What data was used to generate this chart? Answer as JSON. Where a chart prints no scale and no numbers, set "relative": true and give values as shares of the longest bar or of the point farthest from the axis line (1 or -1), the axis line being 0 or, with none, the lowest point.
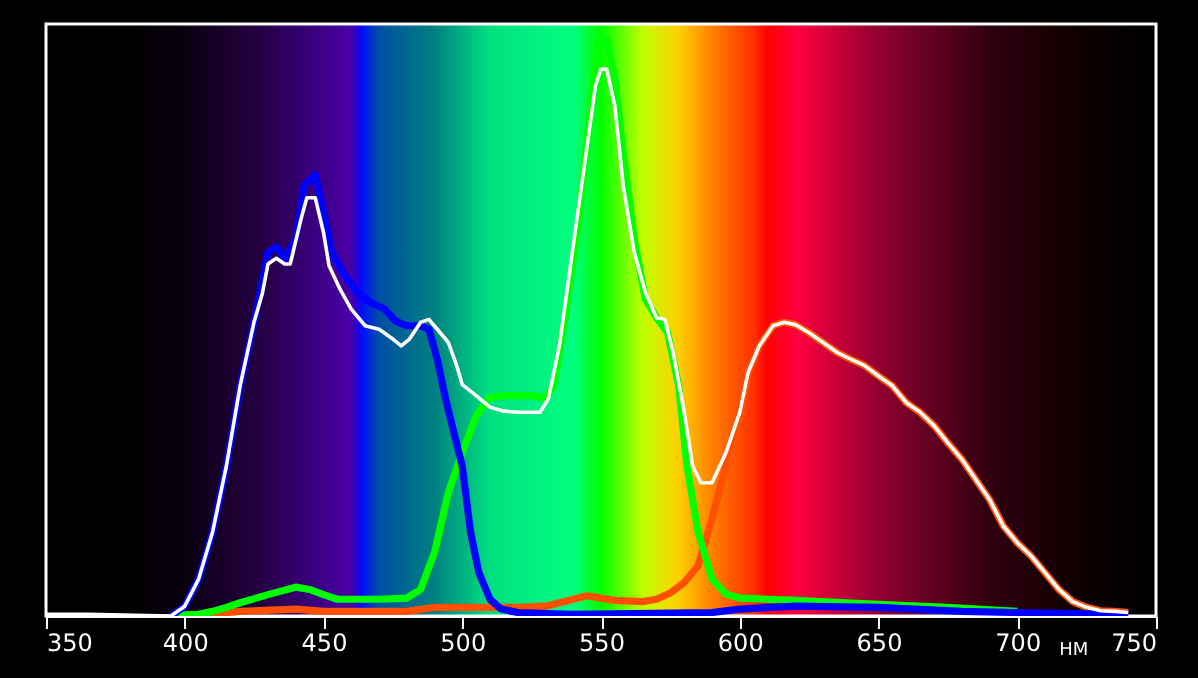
{
  "chart_data": {
    "type": "line",
    "xlabel": "НМ",
    "relative": true,
    "xlim": [
      350,
      750
    ],
    "xticks": [
      350,
      400,
      450,
      500,
      550,
      600,
      650,
      700,
      750
    ],
    "grid": false,
    "tick_labels": "x",
    "marker": "none",
    "line_style": "solid",
    "series": [
      {
        "color": "#ff5000",
        "x": [
          405,
          415,
          420,
          440,
          450,
          480,
          490,
          500,
          520,
          530,
          540,
          545,
          550,
          555,
          565,
          570,
          575,
          580,
          585,
          590,
          595,
          600,
          603,
          607,
          612,
          616,
          620,
          625,
          630,
          635,
          640,
          645,
          650,
          655,
          660,
          665,
          670,
          675,
          680,
          685,
          690,
          695,
          700,
          705,
          710,
          715,
          720,
          725,
          730,
          735,
          740
        ],
        "values": [
          0,
          0.006,
          0.008,
          0.012,
          0.008,
          0.008,
          0.015,
          0.015,
          0.015,
          0.017,
          0.029,
          0.035,
          0.031,
          0.027,
          0.025,
          0.029,
          0.04,
          0.058,
          0.087,
          0.168,
          0.26,
          0.347,
          0.422,
          0.468,
          0.503,
          0.509,
          0.505,
          0.491,
          0.474,
          0.457,
          0.445,
          0.434,
          0.416,
          0.399,
          0.37,
          0.353,
          0.33,
          0.3,
          0.272,
          0.237,
          0.202,
          0.156,
          0.127,
          0.104,
          0.075,
          0.046,
          0.025,
          0.015,
          0.009,
          0.008,
          0.006
        ]
      },
      {
        "color": "#00ff00",
        "x": [
          395,
          400,
          405,
          410,
          415,
          420,
          430,
          440,
          445,
          450,
          455,
          470,
          480,
          485,
          490,
          495,
          500,
          505,
          510,
          515,
          525,
          530,
          533,
          537,
          542,
          546,
          549,
          552,
          555,
          558,
          562,
          566,
          570,
          574,
          578,
          581,
          585,
          590,
          595,
          600,
          620,
          650,
          675,
          700
        ],
        "values": [
          0,
          0.002,
          0.003,
          0.008,
          0.015,
          0.023,
          0.037,
          0.05,
          0.046,
          0.037,
          0.029,
          0.029,
          0.031,
          0.046,
          0.11,
          0.214,
          0.283,
          0.347,
          0.379,
          0.382,
          0.382,
          0.378,
          0.399,
          0.514,
          0.688,
          0.873,
          1,
          1,
          0.931,
          0.803,
          0.653,
          0.549,
          0.517,
          0.491,
          0.399,
          0.26,
          0.145,
          0.064,
          0.038,
          0.031,
          0.027,
          0.02,
          0.015,
          0.008
        ]
      },
      {
        "color": "#0000ff",
        "x": [
          395,
          400,
          405,
          410,
          415,
          420,
          425,
          430,
          433,
          436,
          440,
          443,
          447,
          450,
          453,
          457,
          462,
          467,
          472,
          476,
          480,
          485,
          488,
          491,
          494,
          497,
          500,
          503,
          506,
          510,
          514,
          520,
          540,
          590,
          600,
          620,
          650,
          680,
          720,
          740
        ],
        "values": [
          0,
          0.017,
          0.064,
          0.145,
          0.26,
          0.4,
          0.51,
          0.63,
          0.64,
          0.62,
          0.653,
          0.746,
          0.765,
          0.7,
          0.63,
          0.595,
          0.561,
          0.543,
          0.532,
          0.511,
          0.503,
          0.503,
          0.497,
          0.445,
          0.376,
          0.318,
          0.26,
          0.145,
          0.075,
          0.029,
          0.012,
          0.006,
          0.003,
          0.006,
          0.012,
          0.017,
          0.015,
          0.008,
          0.004,
          0.003
        ]
      },
      {
        "color": "#ffffff",
        "x": [
          350,
          365,
          395,
          400,
          405,
          410,
          415,
          420,
          425,
          428,
          430,
          433,
          436,
          438,
          442,
          444,
          447,
          450,
          452,
          456,
          460,
          465,
          470,
          475,
          478,
          481,
          485,
          488,
          491,
          495,
          498,
          500,
          505,
          510,
          515,
          520,
          525,
          528,
          531,
          535,
          540,
          545,
          548,
          550,
          552,
          555,
          558,
          562,
          566,
          570,
          573,
          576,
          580,
          583,
          586,
          590,
          595,
          600,
          603,
          607,
          612,
          616,
          620,
          625,
          630,
          635,
          640,
          645,
          650,
          655,
          660,
          665,
          670,
          675,
          680,
          685,
          690,
          695,
          700,
          705,
          710,
          715,
          720,
          725,
          730,
          735,
          740
        ],
        "values": [
          0.003,
          0.003,
          0,
          0.017,
          0.064,
          0.145,
          0.26,
          0.4,
          0.51,
          0.56,
          0.61,
          0.62,
          0.61,
          0.61,
          0.69,
          0.725,
          0.725,
          0.665,
          0.607,
          0.566,
          0.532,
          0.503,
          0.497,
          0.48,
          0.468,
          0.48,
          0.509,
          0.514,
          0.497,
          0.474,
          0.434,
          0.401,
          0.382,
          0.362,
          0.355,
          0.353,
          0.353,
          0.353,
          0.376,
          0.468,
          0.642,
          0.815,
          0.919,
          0.948,
          0.948,
          0.884,
          0.746,
          0.63,
          0.561,
          0.517,
          0.514,
          0.457,
          0.353,
          0.26,
          0.231,
          0.231,
          0.283,
          0.353,
          0.422,
          0.468,
          0.503,
          0.509,
          0.505,
          0.491,
          0.474,
          0.457,
          0.445,
          0.434,
          0.416,
          0.399,
          0.37,
          0.353,
          0.33,
          0.3,
          0.272,
          0.237,
          0.202,
          0.156,
          0.127,
          0.104,
          0.075,
          0.046,
          0.025,
          0.015,
          0.009,
          0.008,
          0.006
        ]
      }
    ]
  }
}
